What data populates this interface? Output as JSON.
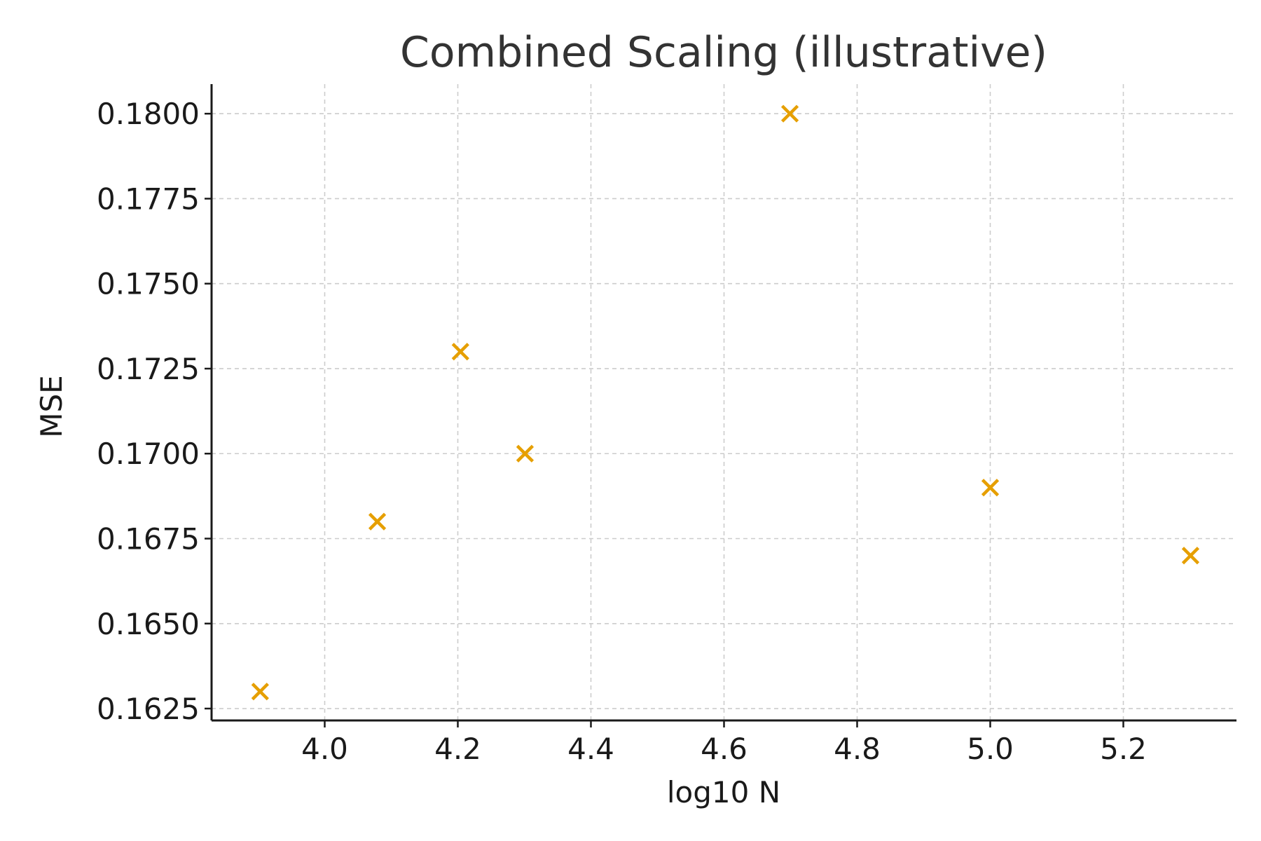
{
  "chart_data": {
    "type": "scatter",
    "title": "Combined Scaling (illustrative)",
    "xlabel": "log10 N",
    "ylabel": "MSE",
    "xlim": [
      3.83,
      5.37
    ],
    "ylim": [
      0.16215,
      0.18087
    ],
    "x_ticks": [
      4.0,
      4.2,
      4.4,
      4.6,
      4.8,
      5.0,
      5.2
    ],
    "x_tick_labels": [
      "4.0",
      "4.2",
      "4.4",
      "4.6",
      "4.8",
      "5.0",
      "5.2"
    ],
    "y_ticks": [
      0.1625,
      0.165,
      0.1675,
      0.17,
      0.1725,
      0.175,
      0.1775,
      0.18
    ],
    "y_tick_labels": [
      "0.1625",
      "0.1650",
      "0.1675",
      "0.1700",
      "0.1725",
      "0.1750",
      "0.1775",
      "0.1800"
    ],
    "grid": true,
    "marker": "x",
    "color": "#E69F00",
    "points": [
      {
        "x": 3.903,
        "y": 0.163
      },
      {
        "x": 4.079,
        "y": 0.168
      },
      {
        "x": 4.204,
        "y": 0.173
      },
      {
        "x": 4.301,
        "y": 0.17
      },
      {
        "x": 4.699,
        "y": 0.18
      },
      {
        "x": 5.0,
        "y": 0.169
      },
      {
        "x": 5.301,
        "y": 0.167
      }
    ]
  }
}
